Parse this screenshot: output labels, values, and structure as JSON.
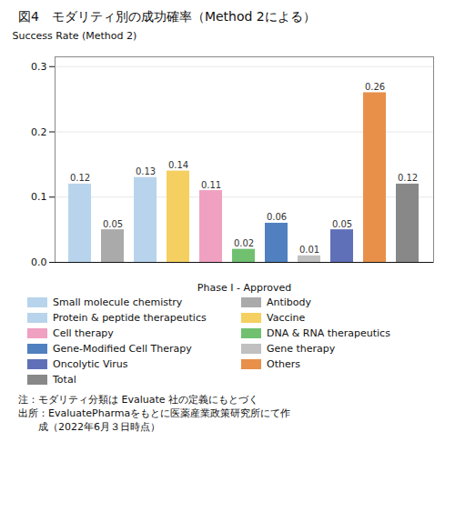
{
  "chart_data": {
    "type": "bar",
    "title": "図4　モダリティ別の成功確率（Method 2による）",
    "xlabel": "Phase I - Approved",
    "ylabel": "Success Rate (Method 2)",
    "categories": [
      "Small molecule chemistry",
      "Antibody",
      "Protein & peptide therapeutics",
      "Vaccine",
      "Cell therapy",
      "DNA & RNA therapeutics",
      "Gene-Modified Cell Therapy",
      "Gene therapy",
      "Oncolytic Virus",
      "Others",
      "Total"
    ],
    "values": [
      0.12,
      0.05,
      0.13,
      0.14,
      0.11,
      0.02,
      0.06,
      0.01,
      0.05,
      0.26,
      0.12
    ],
    "colors": [
      "#b8d4ec",
      "#aaaaaa",
      "#b8d4ec",
      "#f5d060",
      "#f0a0c0",
      "#70c070",
      "#5080c0",
      "#c0c0c0",
      "#6070b8",
      "#e8904a",
      "#888888"
    ],
    "ylim": [
      0,
      0.315
    ],
    "yticks": [
      {
        "value": 0,
        "label": "0.0"
      },
      0.1,
      0.2,
      0.3
    ],
    "grid": true,
    "data_labels": true,
    "tick_labels": "y",
    "legend": "bottom",
    "annotations": [
      "注：モダリティ分類は Evaluate 社の定義にもとづく",
      "出所：EvaluatePharmaをもとに医薬産業政策研究所にて作",
      "　　成（2022年6月３日時点）"
    ]
  }
}
